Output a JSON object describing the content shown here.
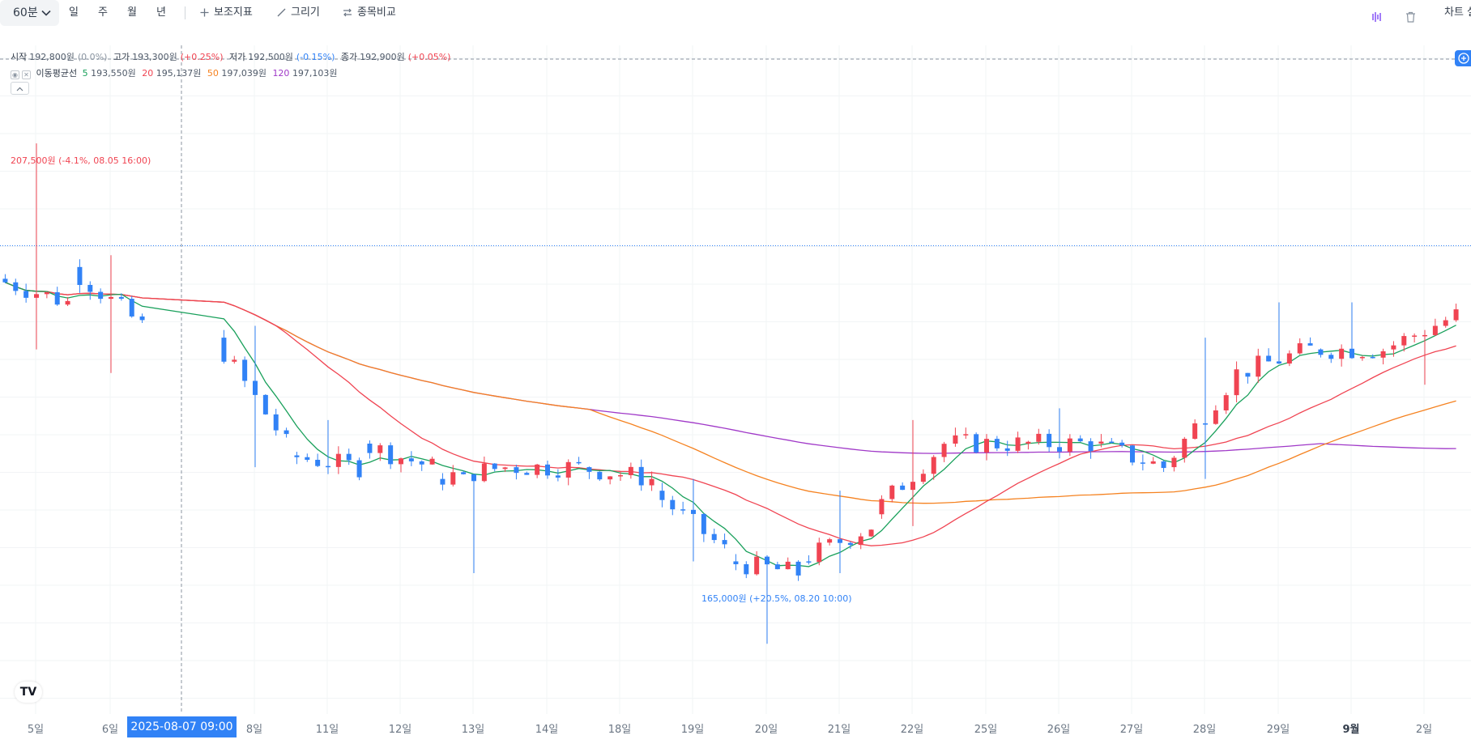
{
  "toolbar": {
    "interval": "60분",
    "periods": [
      "일",
      "주",
      "월",
      "년"
    ],
    "indicators_label": "보조지표",
    "draw_label": "그리기",
    "compare_label": "종목비교",
    "chart_settings_label": "차트 설"
  },
  "ohlc": {
    "open_label": "시작",
    "open_value": "192,800원",
    "open_change": "(0.0%)",
    "high_label": "고가",
    "high_value": "193,300원",
    "high_change": "(+0.25%)",
    "low_label": "저가",
    "low_value": "192,500원",
    "low_change": "(-0.15%)",
    "close_label": "종가",
    "close_value": "192,900원",
    "close_change": "(+0.05%)"
  },
  "ma_legend": {
    "label": "이동평균선",
    "items": [
      {
        "period": "5",
        "value": "193,550원",
        "color": "#19a05b"
      },
      {
        "period": "20",
        "value": "195,137원",
        "color": "#f04452"
      },
      {
        "period": "50",
        "value": "197,039원",
        "color": "#f58220"
      },
      {
        "period": "120",
        "value": "197,103원",
        "color": "#a039c8"
      }
    ]
  },
  "extremes": {
    "high": "207,500원 (-4.1%, 08.05 16:00)",
    "low": "165,000원 (+20.5%, 08.20 10:00)"
  },
  "crosshair_date": "2025-08-07  09:00",
  "x_axis": [
    "5일",
    "6일",
    "8일",
    "11일",
    "12일",
    "13일",
    "14일",
    "18일",
    "19일",
    "20일",
    "21일",
    "22일",
    "25일",
    "26일",
    "27일",
    "28일",
    "29일",
    "9월",
    "2일"
  ],
  "colors": {
    "up": "#f04452",
    "down": "#3182f6",
    "ma5": "#19a05b",
    "ma20": "#f04452",
    "ma50": "#f58220",
    "ma120": "#a039c8",
    "accent": "#3182f6"
  },
  "chart_data": {
    "type": "candlestick",
    "unit": "원",
    "interval": "60분",
    "y_range_approx": [
      160000,
      215000
    ],
    "period_high": 207500,
    "period_low": 165000,
    "last_close": 192900,
    "daily_approx": [
      {
        "day": "5일",
        "open": 196000,
        "high": 207500,
        "low": 190000,
        "close": 194000
      },
      {
        "day": "6일",
        "open": 197000,
        "high": 198000,
        "low": 188000,
        "close": 192000
      },
      {
        "day": "8일",
        "open": 191000,
        "high": 192000,
        "low": 180000,
        "close": 182000
      },
      {
        "day": "11일",
        "open": 181000,
        "high": 184000,
        "low": 178000,
        "close": 180000
      },
      {
        "day": "12일",
        "open": 182000,
        "high": 183000,
        "low": 179000,
        "close": 180000
      },
      {
        "day": "13일",
        "open": 179000,
        "high": 180000,
        "low": 171000,
        "close": 180000
      },
      {
        "day": "14일",
        "open": 180000,
        "high": 181000,
        "low": 178000,
        "close": 180000
      },
      {
        "day": "18일",
        "open": 180000,
        "high": 181000,
        "low": 177000,
        "close": 179000
      },
      {
        "day": "19일",
        "open": 178000,
        "high": 179000,
        "low": 172000,
        "close": 173000
      },
      {
        "day": "20일",
        "open": 172000,
        "high": 173000,
        "low": 165000,
        "close": 171000
      },
      {
        "day": "21일",
        "open": 172000,
        "high": 178000,
        "low": 171000,
        "close": 175000
      },
      {
        "day": "22일",
        "open": 176000,
        "high": 184000,
        "low": 175000,
        "close": 182000
      },
      {
        "day": "25일",
        "open": 182000,
        "high": 184000,
        "low": 180000,
        "close": 182000
      },
      {
        "day": "26일",
        "open": 182000,
        "high": 185000,
        "low": 180000,
        "close": 182000
      },
      {
        "day": "27일",
        "open": 182000,
        "high": 183000,
        "low": 178000,
        "close": 180000
      },
      {
        "day": "28일",
        "open": 180000,
        "high": 191000,
        "low": 179000,
        "close": 188000
      },
      {
        "day": "29일",
        "open": 188000,
        "high": 194000,
        "low": 187000,
        "close": 190000
      },
      {
        "day": "9월",
        "open": 190000,
        "high": 194000,
        "low": 188000,
        "close": 190000
      },
      {
        "day": "2일",
        "open": 190000,
        "high": 193300,
        "low": 187000,
        "close": 192900
      }
    ]
  }
}
